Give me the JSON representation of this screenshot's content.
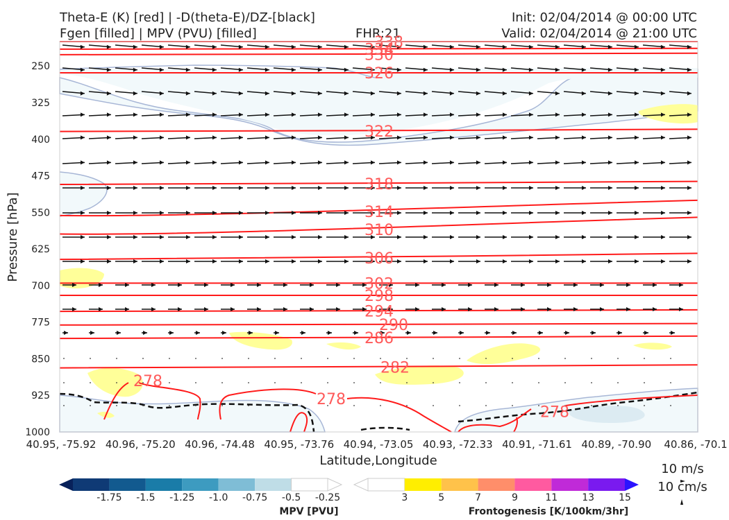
{
  "header": {
    "title_left_1": "Theta-E (K) [red] | -D(theta-E)/DZ-[black]",
    "title_left_2": "Fgen [filled] | MPV (PVU) [filled]",
    "fhr": "FHR:21",
    "init": "Init: 02/04/2014 @ 00:00 UTC",
    "valid": "Valid: 02/04/2014 @ 21:00 UTC"
  },
  "chart_data": {
    "type": "cross-section",
    "xlabel": "Latitude,Longitude",
    "ylabel": "Pressure [hPa]",
    "ylim": [
      1000,
      200
    ],
    "y_ticks": [
      "250",
      "325",
      "400",
      "475",
      "550",
      "625",
      "700",
      "775",
      "850",
      "925",
      "1000"
    ],
    "x_ticks": [
      "40.95, -75.92",
      "40.96, -75.20",
      "40.96, -74.48",
      "40.95, -73.76",
      "40.94, -73.05",
      "40.93, -72.33",
      "40.91, -71.61",
      "40.89, -70.90",
      "40.86, -70.1"
    ],
    "theta_e_contours": [
      {
        "value": "338",
        "pressure": 200
      },
      {
        "value": "334",
        "pressure": 215
      },
      {
        "value": "330",
        "pressure": 226
      },
      {
        "value": "326",
        "pressure": 264
      },
      {
        "value": "322",
        "pressure": 383
      },
      {
        "value": "318",
        "pressure": 491
      },
      {
        "value": "314",
        "pressure": 548
      },
      {
        "value": "310",
        "pressure": 585
      },
      {
        "value": "306",
        "pressure": 643
      },
      {
        "value": "302",
        "pressure": 695
      },
      {
        "value": "298",
        "pressure": 720
      },
      {
        "value": "294",
        "pressure": 752
      },
      {
        "value": "290",
        "pressure": 780
      },
      {
        "value": "286",
        "pressure": 807
      },
      {
        "value": "282",
        "pressure": 867
      },
      {
        "value": "278",
        "pressure": 895
      },
      {
        "value": "278",
        "pressure": 932
      },
      {
        "value": "278",
        "pressure": 958
      }
    ],
    "wind_reference": {
      "horizontal": "10 m/s",
      "vertical": "10 cm/s"
    }
  },
  "colorbars": {
    "mpv": {
      "label": "MPV [PVU]",
      "ticks": [
        "-1.75",
        "-1.5",
        "-1.25",
        "-1.0",
        "-0.75",
        "-0.5",
        "-0.25"
      ],
      "colors": [
        "#08215a",
        "#0f3a75",
        "#125a8f",
        "#1a7ca8",
        "#3d9bc0",
        "#7fbdd6",
        "#bfdde7",
        "#ffffff"
      ]
    },
    "fgen": {
      "label": "Frontogenesis [K/100km/3hr]",
      "ticks": [
        "3",
        "5",
        "7",
        "9",
        "11",
        "13",
        "15"
      ],
      "colors": [
        "#ffffff",
        "#ffee00",
        "#ffc24a",
        "#ff8e6a",
        "#ff5aa0",
        "#c02ad8",
        "#7a1aef",
        "#2b14ff"
      ]
    }
  },
  "colors": {
    "theta_e": "#ff1a1a",
    "theta_e_label": "#ff5a5a",
    "stability": "#111111",
    "mpv_fill": "#f2f9fb",
    "mpv_outline": "#a7b6d6",
    "fgen_fill": "#ffff99"
  }
}
